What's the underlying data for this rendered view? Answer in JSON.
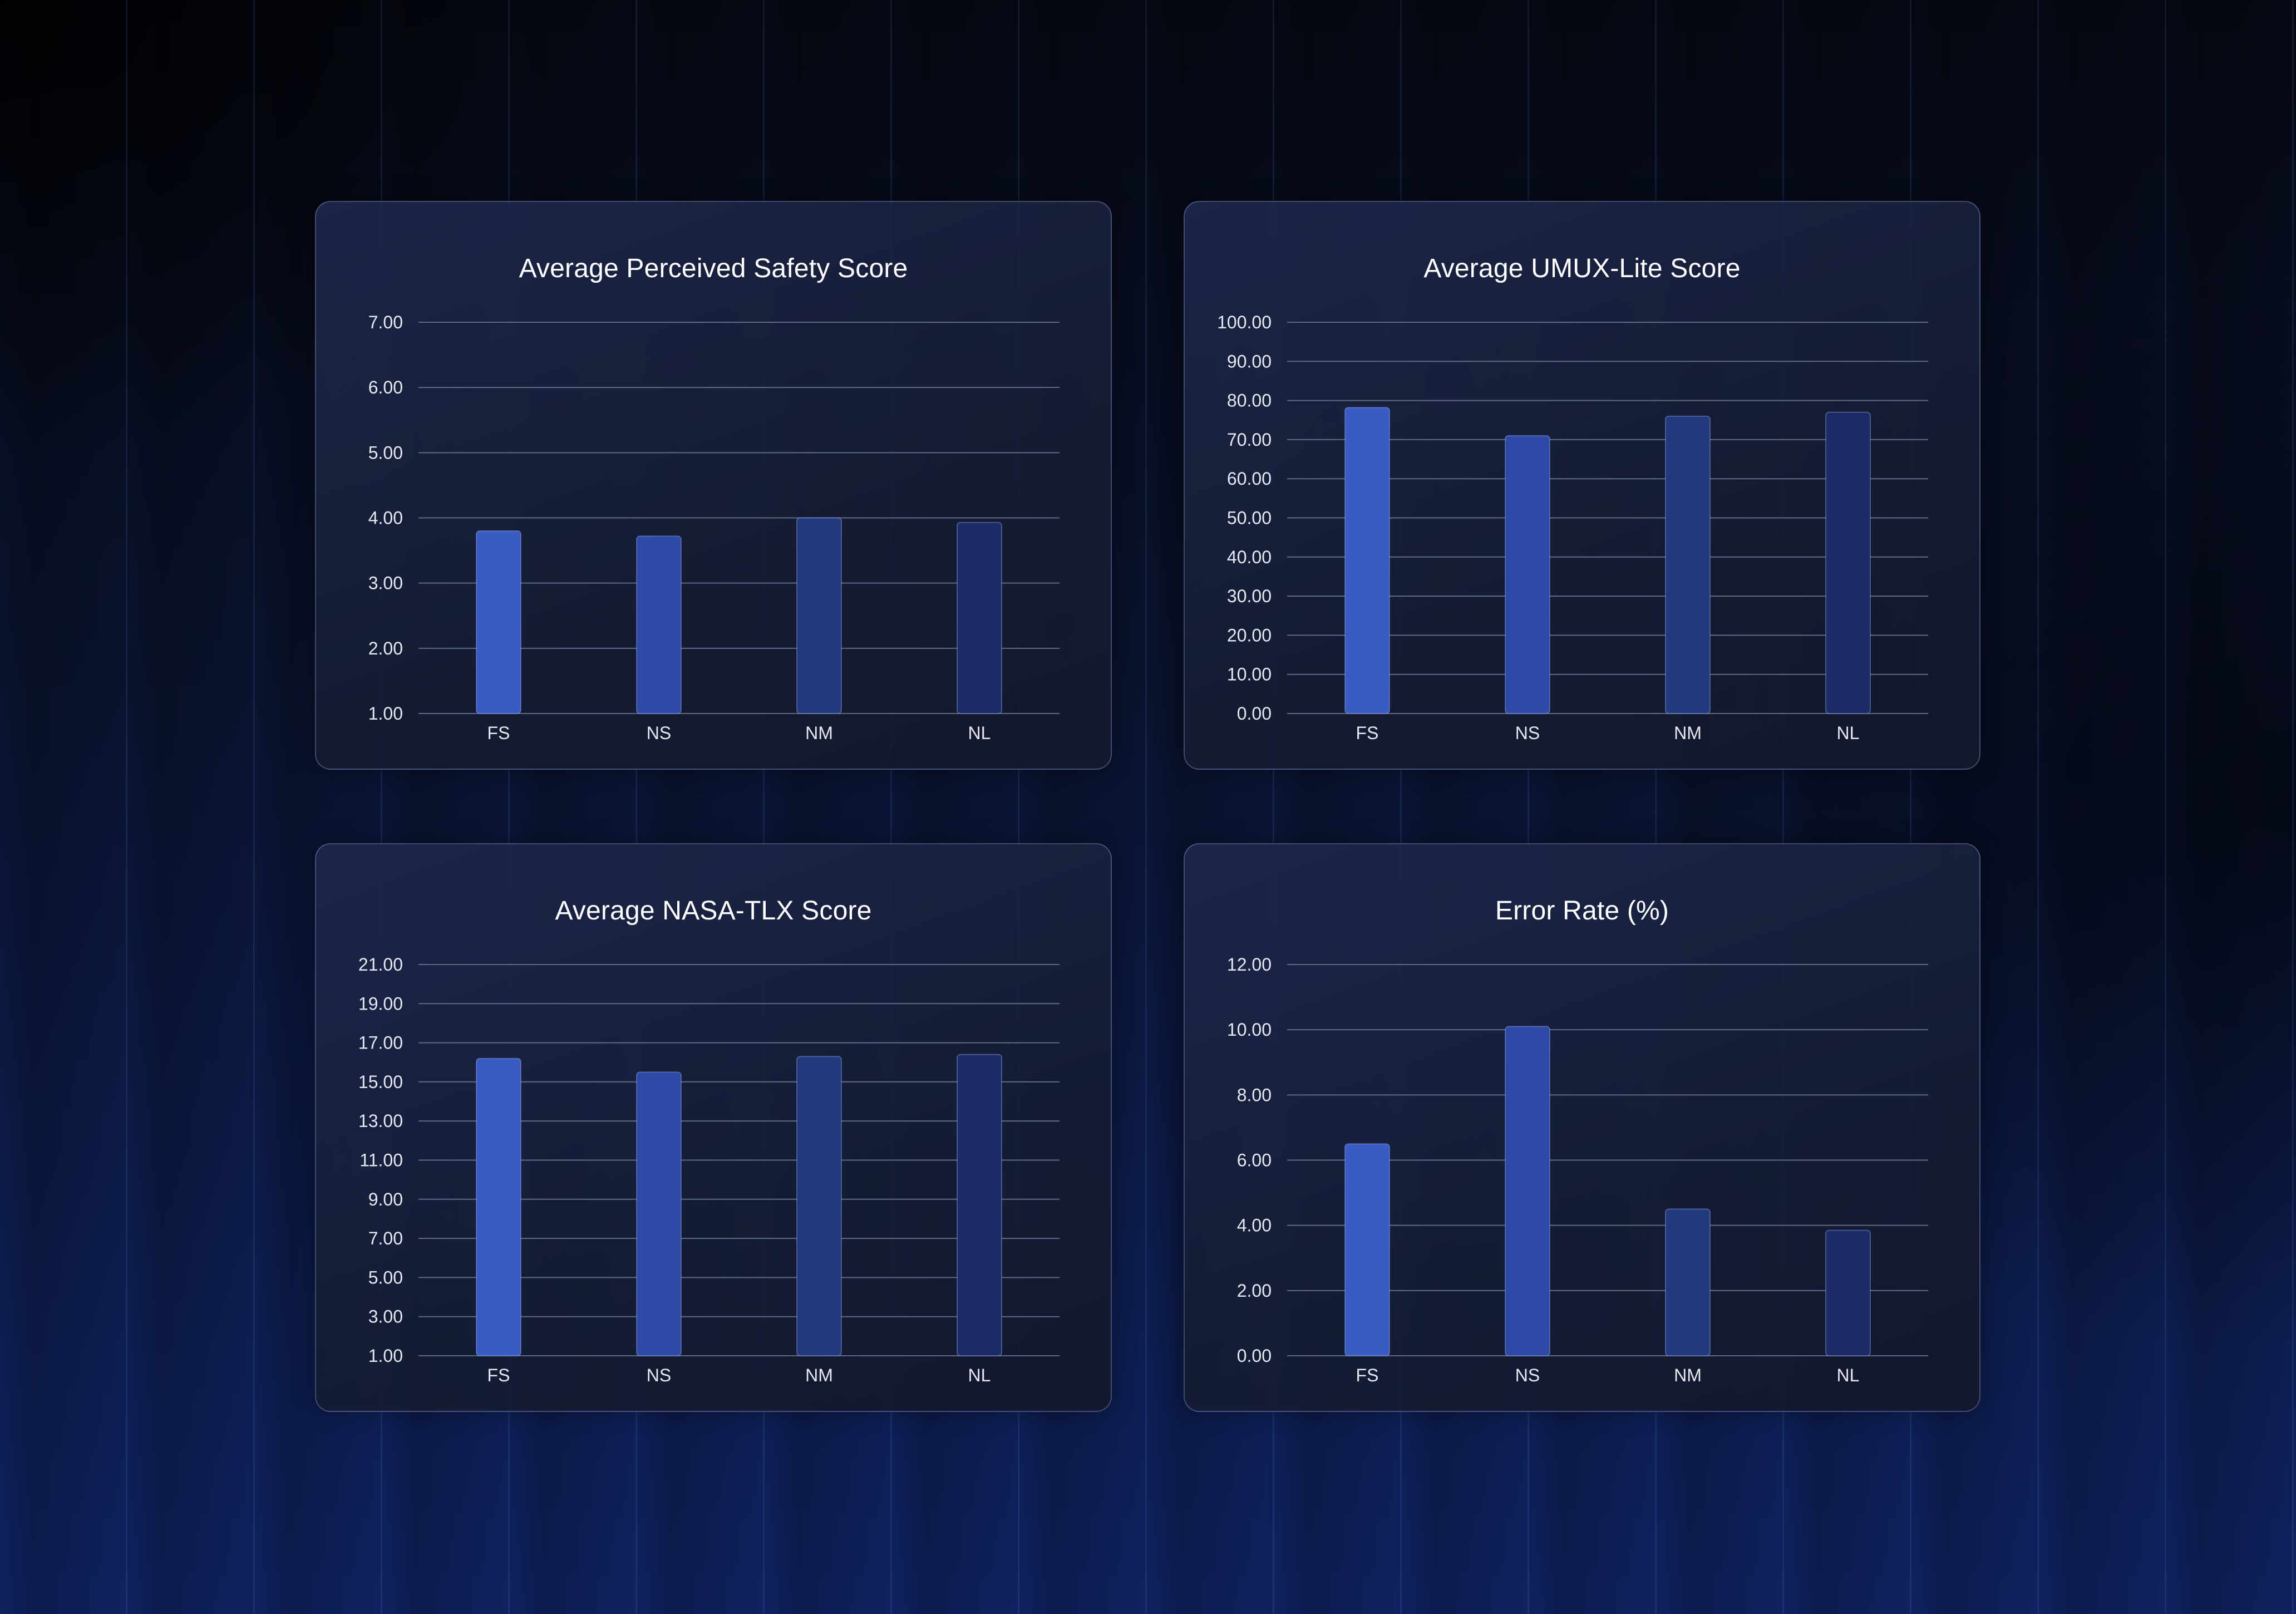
{
  "colors": {
    "bar_fs": "#3a5cc2",
    "bar_ns": "#2d4aa6",
    "bar_nm": "#23397f",
    "bar_nl": "#1a2b66",
    "grid": "#5f6a86"
  },
  "chart_data": [
    {
      "type": "bar",
      "title": "Average Perceived Safety Score",
      "categories": [
        "FS",
        "NS",
        "NM",
        "NL"
      ],
      "values": [
        3.8,
        3.72,
        4.0,
        3.93
      ],
      "ylim": [
        1,
        7
      ],
      "yticks": [
        "1.00",
        "2.00",
        "3.00",
        "4.00",
        "5.00",
        "6.00",
        "7.00"
      ],
      "grid": true
    },
    {
      "type": "bar",
      "title": "Average UMUX-Lite Score",
      "categories": [
        "FS",
        "NS",
        "NM",
        "NL"
      ],
      "values": [
        78.2,
        71.0,
        76.0,
        77.0
      ],
      "ylim": [
        0,
        100
      ],
      "yticks": [
        "0.00",
        "10.00",
        "20.00",
        "30.00",
        "40.00",
        "50.00",
        "60.00",
        "70.00",
        "80.00",
        "90.00",
        "100.00"
      ],
      "grid": true
    },
    {
      "type": "bar",
      "title": "Average NASA-TLX Score",
      "categories": [
        "FS",
        "NS",
        "NM",
        "NL"
      ],
      "values": [
        16.2,
        15.5,
        16.3,
        16.4
      ],
      "ylim": [
        1,
        21
      ],
      "yticks": [
        "1.00",
        "3.00",
        "5.00",
        "7.00",
        "9.00",
        "11.00",
        "13.00",
        "15.00",
        "17.00",
        "19.00",
        "21.00"
      ],
      "grid": true
    },
    {
      "type": "bar",
      "title": "Error Rate (%)",
      "categories": [
        "FS",
        "NS",
        "NM",
        "NL"
      ],
      "values": [
        6.5,
        10.1,
        4.5,
        3.85
      ],
      "ylim": [
        0,
        12
      ],
      "yticks": [
        "0.00",
        "2.00",
        "4.00",
        "6.00",
        "8.00",
        "10.00",
        "12.00"
      ],
      "grid": true
    }
  ]
}
